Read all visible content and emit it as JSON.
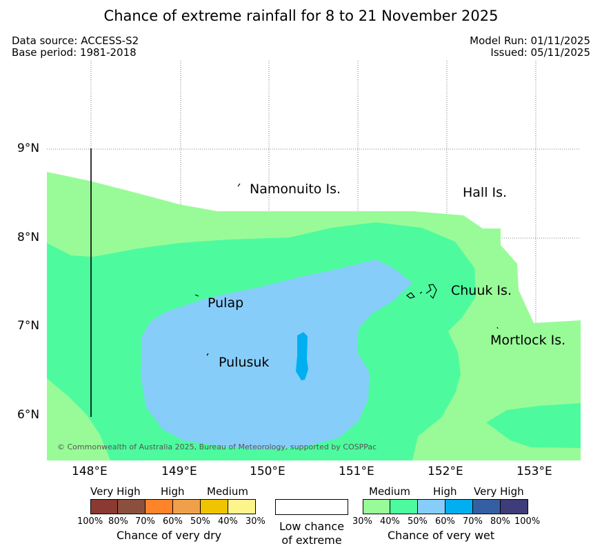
{
  "title": "Chance of extreme rainfall for 8 to 21 November 2025",
  "meta": {
    "data_source": "Data source: ACCESS-S2",
    "base_period": "Base period: 1981-2018",
    "model_run": "Model Run: 01/11/2025",
    "issued": "Issued: 05/11/2025"
  },
  "map": {
    "copyright": "© Commonwealth of Australia 2025, Bureau of Meteorology, supported by COSPPac",
    "lon_labels": [
      "148°E",
      "149°E",
      "150°E",
      "151°E",
      "152°E",
      "153°E"
    ],
    "lat_labels": [
      "9°N",
      "8°N",
      "7°N",
      "6°N"
    ],
    "places": {
      "namonuito": "Namonuito Is.",
      "hall": "Hall Is.",
      "chuuk": "Chuuk Is.",
      "pulap": "Pulap",
      "mortlock": "Mortlock Is.",
      "pulusuk": "Pulusuk"
    },
    "colors": {
      "wet_30": "#99fb98",
      "wet_40": "#4dfb9e",
      "wet_50": "#87cdfa",
      "wet_60": "#00afef"
    }
  },
  "legend": {
    "dry": {
      "levels": [
        "Very High",
        "High",
        "Medium"
      ],
      "ticks": [
        "100%",
        "80%",
        "70%",
        "60%",
        "50%",
        "40%",
        "30%"
      ],
      "colors": [
        "#8b3a31",
        "#8c4f3e",
        "#fe8429",
        "#f0a04b",
        "#f0c400",
        "#fef48c"
      ],
      "caption": "Chance of very dry"
    },
    "low": {
      "line1": "Low chance",
      "line2": "of extreme"
    },
    "wet": {
      "levels": [
        "Medium",
        "High",
        "Very High"
      ],
      "ticks": [
        "30%",
        "40%",
        "50%",
        "60%",
        "70%",
        "80%",
        "100%"
      ],
      "colors": [
        "#99fb98",
        "#4dfb9e",
        "#87cdfa",
        "#00afef",
        "#3460a3",
        "#3f3c7a"
      ],
      "caption": "Chance of very wet"
    }
  }
}
